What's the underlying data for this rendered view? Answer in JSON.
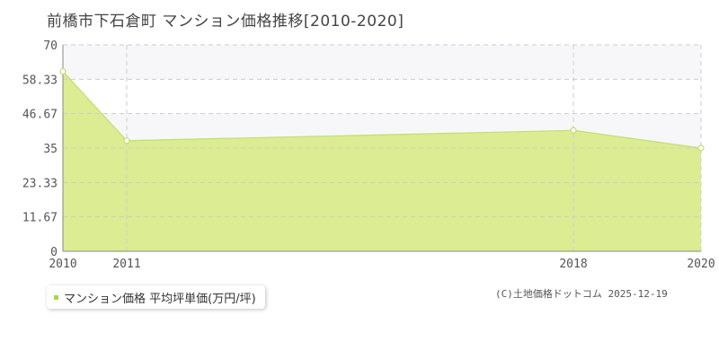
{
  "chart_data": {
    "type": "area",
    "title": "前橋市下石倉町 マンション価格推移[2010-2020]",
    "x": [
      "2010",
      "2011",
      "2018",
      "2020"
    ],
    "series": [
      {
        "name": "マンション価格 平均坪単価(万円/坪)",
        "values": [
          61,
          37.5,
          41,
          35
        ]
      }
    ],
    "ylim": [
      0,
      70
    ],
    "yticks": [
      "0",
      "11.67",
      "23.33",
      "35",
      "46.67",
      "58.33",
      "70"
    ],
    "grid": true,
    "legend_position": "bottom-left"
  },
  "colors": {
    "fill": "#dbec93",
    "line": "#c2df6e",
    "grid": "#cccccc",
    "band": "#f7f7f9"
  },
  "copyright": "(C)土地価格ドットコム 2025-12-19"
}
